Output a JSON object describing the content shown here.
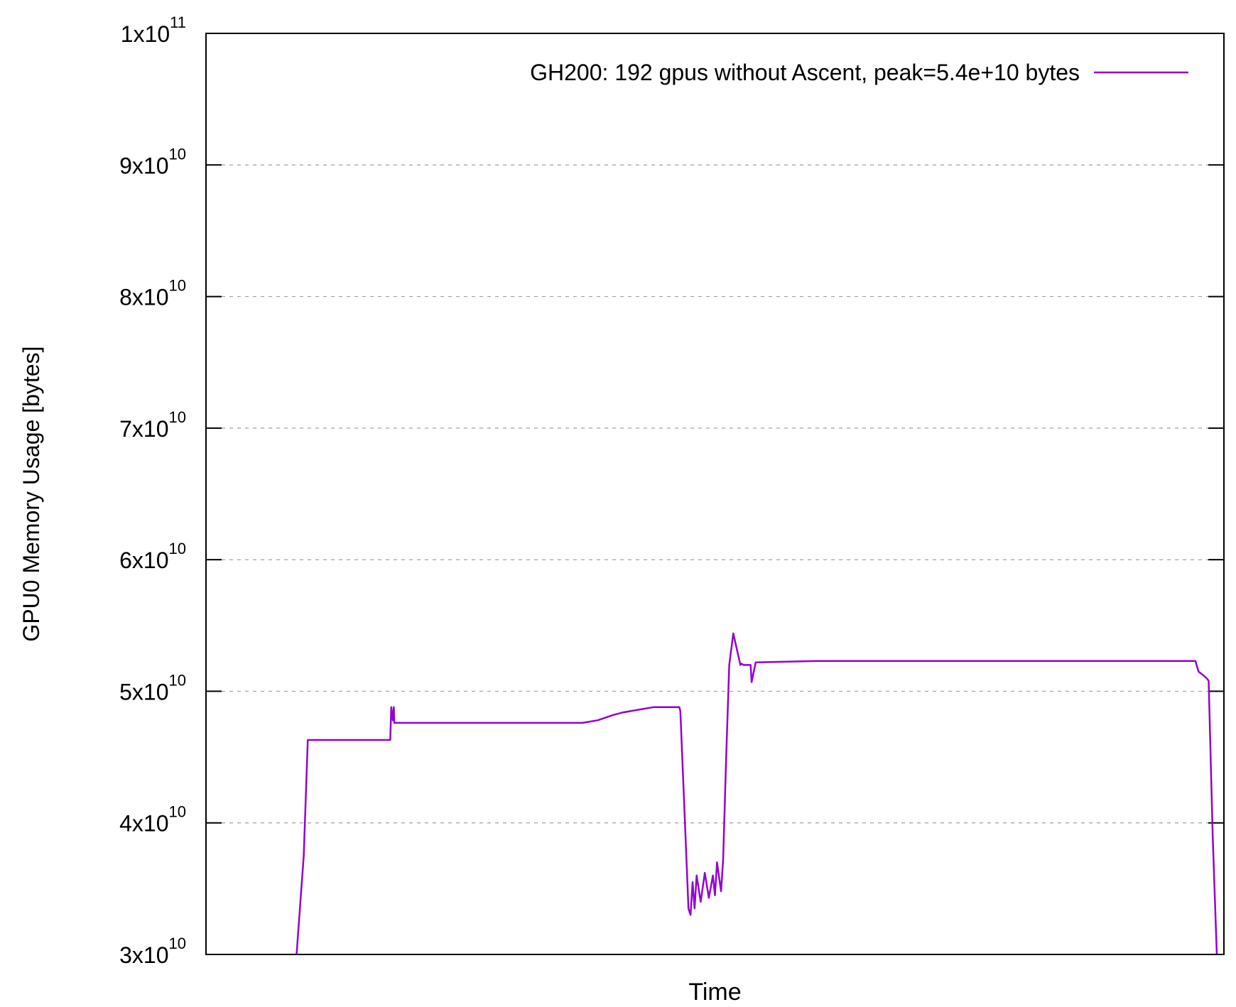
{
  "chart_data": {
    "type": "line",
    "xlabel": "Time",
    "ylabel": "GPU0 Memory Usage [bytes]",
    "ylim": [
      30000000000,
      100000000000
    ],
    "xlim": [
      0,
      100
    ],
    "grid": "horizontal dashed",
    "legend_position": "top-right",
    "y_ticks": [
      {
        "value": 30000000000,
        "base": "3x10",
        "exp": "10"
      },
      {
        "value": 40000000000,
        "base": "4x10",
        "exp": "10"
      },
      {
        "value": 50000000000,
        "base": "5x10",
        "exp": "10"
      },
      {
        "value": 60000000000,
        "base": "6x10",
        "exp": "10"
      },
      {
        "value": 70000000000,
        "base": "7x10",
        "exp": "10"
      },
      {
        "value": 80000000000,
        "base": "8x10",
        "exp": "10"
      },
      {
        "value": 90000000000,
        "base": "9x10",
        "exp": "10"
      },
      {
        "value": 100000000000,
        "base": "1x10",
        "exp": "11"
      }
    ],
    "series": [
      {
        "name": "GH200: 192 gpus without Ascent, peak=5.4e+10 bytes",
        "color": "#9400d3",
        "x": [
          8.9,
          9.6,
          10.0,
          18.1,
          18.2,
          18.35,
          18.45,
          18.5,
          30.0,
          37.0,
          38.5,
          40.0,
          41.0,
          42.5,
          44.0,
          46.5,
          46.6,
          47.4,
          47.6,
          47.8,
          48.0,
          48.2,
          48.6,
          49.0,
          49.4,
          49.8,
          50.0,
          50.2,
          50.6,
          50.8,
          51.1,
          51.4,
          51.8,
          52.5,
          52.6,
          52.8,
          53.5,
          53.6,
          54.0,
          60.0,
          70.0,
          80.0,
          90.0,
          97.0,
          97.2,
          97.5,
          98.0,
          98.3,
          98.5,
          98.9,
          99.3
        ],
        "values": [
          30000000000,
          37500000000,
          46300000000,
          46300000000,
          48800000000,
          47800000000,
          48800000000,
          47600000000,
          47600000000,
          47600000000,
          47800000000,
          48200000000,
          48400000000,
          48600000000,
          48800000000,
          48800000000,
          48500000000,
          33500000000,
          33000000000,
          35500000000,
          33500000000,
          36000000000,
          34000000000,
          36200000000,
          34300000000,
          36000000000,
          34500000000,
          37000000000,
          34800000000,
          37200000000,
          45000000000,
          52000000000,
          54400000000,
          52000000000,
          52100000000,
          52000000000,
          52000000000,
          50700000000,
          52200000000,
          52300000000,
          52300000000,
          52300000000,
          52300000000,
          52300000000,
          52300000000,
          51500000000,
          51200000000,
          51000000000,
          50800000000,
          39000000000,
          30000000000
        ]
      }
    ]
  }
}
